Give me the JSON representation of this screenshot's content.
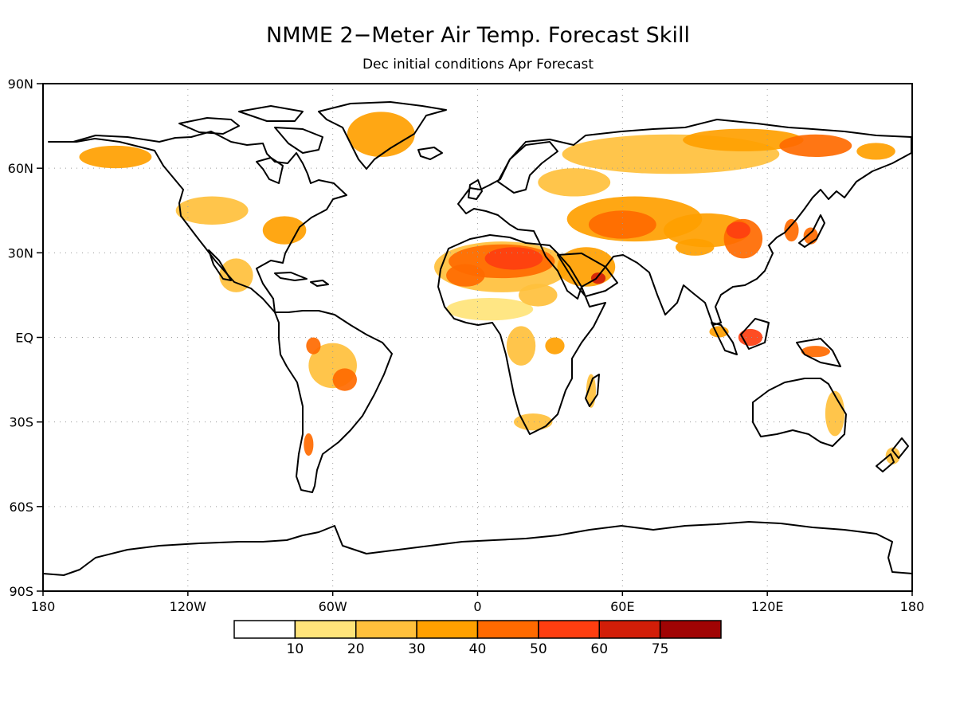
{
  "title": "NMME 2−Meter Air Temp. Forecast Skill",
  "subtitle": "Dec initial conditions  Apr Forecast",
  "lat_ticks": [
    "90N",
    "60N",
    "30N",
    "EQ",
    "30S",
    "60S",
    "90S"
  ],
  "lon_ticks": [
    "180",
    "120W",
    "60W",
    "0",
    "60E",
    "120E",
    "180"
  ],
  "colorbar": {
    "colors": [
      "#ffffff",
      "#ffe47a",
      "#ffc03c",
      "#ffa000",
      "#ff6a00",
      "#fe3e10",
      "#d21e08",
      "#a00404"
    ],
    "labels": [
      "10",
      "20",
      "30",
      "40",
      "50",
      "60",
      "75"
    ]
  },
  "chart_data": {
    "type": "heatmap",
    "variable": "2-Meter Air Temperature forecast skill",
    "initial_conditions": "Dec",
    "forecast": "Apr",
    "levels": [
      10,
      20,
      30,
      40,
      50,
      60,
      75
    ],
    "colors": [
      "#ffffff",
      "#ffe47a",
      "#ffc03c",
      "#ffa000",
      "#ff6a00",
      "#fe3e10",
      "#d21e08",
      "#a00404"
    ],
    "lat_range": [
      -90,
      90
    ],
    "lon_range": [
      -180,
      180
    ],
    "grid": true,
    "regions": [
      {
        "lon": 10,
        "lat": 25,
        "rx": 28,
        "ry": 9,
        "level": 1
      },
      {
        "lon": 10,
        "lat": 27,
        "rx": 22,
        "ry": 6,
        "level": 3
      },
      {
        "lon": 15,
        "lat": 28,
        "rx": 12,
        "ry": 4,
        "level": 4
      },
      {
        "lon": -5,
        "lat": 22,
        "rx": 8,
        "ry": 4,
        "level": 3
      },
      {
        "lon": 45,
        "lat": 25,
        "rx": 12,
        "ry": 7,
        "level": 2
      },
      {
        "lon": 50,
        "lat": 21,
        "rx": 3,
        "ry": 2,
        "level": 5
      },
      {
        "lon": 5,
        "lat": 10,
        "rx": 18,
        "ry": 4,
        "level": 0
      },
      {
        "lon": 25,
        "lat": 15,
        "rx": 8,
        "ry": 4,
        "level": 1
      },
      {
        "lon": 18,
        "lat": -3,
        "rx": 6,
        "ry": 7,
        "level": 1
      },
      {
        "lon": 32,
        "lat": -3,
        "rx": 4,
        "ry": 3,
        "level": 2
      },
      {
        "lon": 23,
        "lat": -30,
        "rx": 8,
        "ry": 3,
        "level": 1
      },
      {
        "lon": 47,
        "lat": -19,
        "rx": 2,
        "ry": 6,
        "level": 1
      },
      {
        "lon": 65,
        "lat": 42,
        "rx": 28,
        "ry": 8,
        "level": 2
      },
      {
        "lon": 60,
        "lat": 40,
        "rx": 14,
        "ry": 5,
        "level": 3
      },
      {
        "lon": 95,
        "lat": 38,
        "rx": 18,
        "ry": 6,
        "level": 2
      },
      {
        "lon": 110,
        "lat": 35,
        "rx": 8,
        "ry": 7,
        "level": 3
      },
      {
        "lon": 108,
        "lat": 38,
        "rx": 5,
        "ry": 3,
        "level": 4
      },
      {
        "lon": 90,
        "lat": 32,
        "rx": 8,
        "ry": 3,
        "level": 2
      },
      {
        "lon": 80,
        "lat": 65,
        "rx": 45,
        "ry": 7,
        "level": 1
      },
      {
        "lon": 110,
        "lat": 70,
        "rx": 25,
        "ry": 4,
        "level": 2
      },
      {
        "lon": 140,
        "lat": 68,
        "rx": 15,
        "ry": 4,
        "level": 3
      },
      {
        "lon": 165,
        "lat": 66,
        "rx": 8,
        "ry": 3,
        "level": 2
      },
      {
        "lon": 40,
        "lat": 55,
        "rx": 15,
        "ry": 5,
        "level": 1
      },
      {
        "lon": 130,
        "lat": 38,
        "rx": 3,
        "ry": 4,
        "level": 3
      },
      {
        "lon": 138,
        "lat": 36,
        "rx": 3,
        "ry": 3,
        "level": 3
      },
      {
        "lon": 113,
        "lat": 0,
        "rx": 5,
        "ry": 3,
        "level": 4
      },
      {
        "lon": 140,
        "lat": -5,
        "rx": 6,
        "ry": 2,
        "level": 3
      },
      {
        "lon": 100,
        "lat": 2,
        "rx": 4,
        "ry": 2,
        "level": 2
      },
      {
        "lon": 148,
        "lat": -27,
        "rx": 4,
        "ry": 8,
        "level": 1
      },
      {
        "lon": 172,
        "lat": -42,
        "rx": 3,
        "ry": 3,
        "level": 1
      },
      {
        "lon": -40,
        "lat": 72,
        "rx": 14,
        "ry": 8,
        "level": 2
      },
      {
        "lon": -150,
        "lat": 64,
        "rx": 15,
        "ry": 4,
        "level": 2
      },
      {
        "lon": -80,
        "lat": 38,
        "rx": 9,
        "ry": 5,
        "level": 2
      },
      {
        "lon": -110,
        "lat": 45,
        "rx": 15,
        "ry": 5,
        "level": 1
      },
      {
        "lon": -100,
        "lat": 22,
        "rx": 7,
        "ry": 6,
        "level": 1
      },
      {
        "lon": -60,
        "lat": -10,
        "rx": 10,
        "ry": 8,
        "level": 1
      },
      {
        "lon": -55,
        "lat": -15,
        "rx": 5,
        "ry": 4,
        "level": 3
      },
      {
        "lon": -68,
        "lat": -3,
        "rx": 3,
        "ry": 3,
        "level": 3
      },
      {
        "lon": -70,
        "lat": -38,
        "rx": 2,
        "ry": 4,
        "level": 3
      }
    ]
  }
}
